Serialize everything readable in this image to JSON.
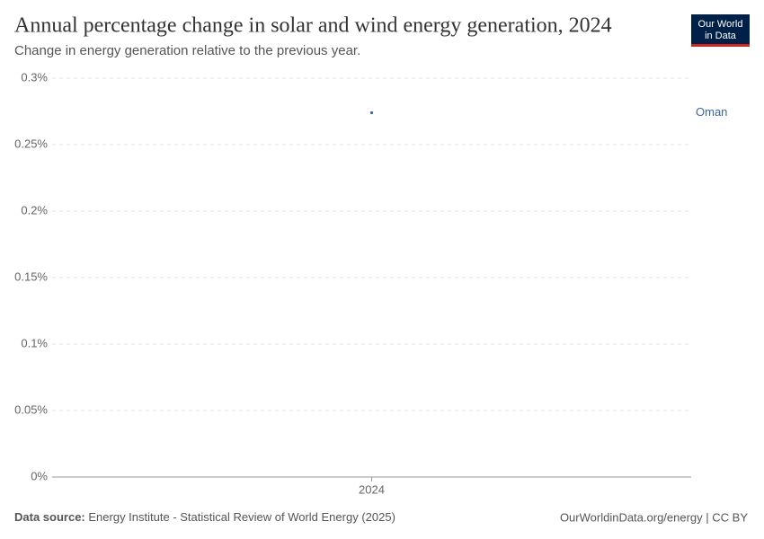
{
  "chart_data": {
    "type": "line",
    "title": "Annual percentage change in solar and wind energy generation, 2024",
    "subtitle": "Change in energy generation relative to the previous year.",
    "x": [
      2024
    ],
    "xticks": [
      2024
    ],
    "series": [
      {
        "name": "Oman",
        "color": "#3a65a8",
        "values": [
          0.274
        ]
      }
    ],
    "ylim": [
      0,
      0.3
    ],
    "yticks": [
      {
        "value": 0,
        "label": "0%"
      },
      {
        "value": 0.05,
        "label": "0.05%"
      },
      {
        "value": 0.1,
        "label": "0.1%"
      },
      {
        "value": 0.15,
        "label": "0.15%"
      },
      {
        "value": 0.2,
        "label": "0.2%"
      },
      {
        "value": 0.25,
        "label": "0.25%"
      },
      {
        "value": 0.3,
        "label": "0.3%"
      }
    ],
    "grid": true,
    "source_label": "Data source:",
    "source": "Energy Institute - Statistical Review of World Energy (2025)",
    "credit": "OurWorldinData.org/energy | CC BY",
    "logo": [
      "Our World",
      "in Data"
    ]
  }
}
